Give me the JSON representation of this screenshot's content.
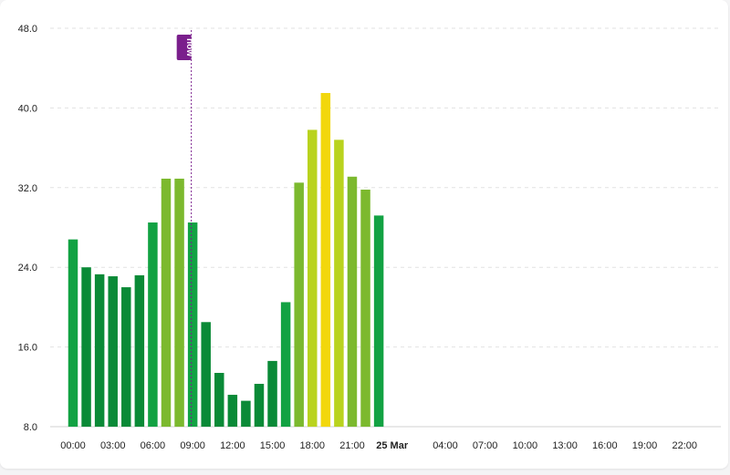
{
  "chart_data": {
    "type": "bar",
    "y_axis": {
      "ticks": [
        "8.0",
        "16.0",
        "24.0",
        "32.0",
        "40.0",
        "48.0"
      ],
      "ylim": [
        8,
        48
      ],
      "grid": true
    },
    "x_axis": {
      "tick_labels": [
        {
          "slot": 0,
          "text": "00:00"
        },
        {
          "slot": 3,
          "text": "03:00"
        },
        {
          "slot": 6,
          "text": "06:00"
        },
        {
          "slot": 9,
          "text": "09:00"
        },
        {
          "slot": 12,
          "text": "12:00"
        },
        {
          "slot": 15,
          "text": "15:00"
        },
        {
          "slot": 18,
          "text": "18:00"
        },
        {
          "slot": 21,
          "text": "21:00"
        },
        {
          "slot": 24,
          "text": "25 Mar",
          "bold": true
        },
        {
          "slot": 28,
          "text": "04:00"
        },
        {
          "slot": 31,
          "text": "07:00"
        },
        {
          "slot": 34,
          "text": "10:00"
        },
        {
          "slot": 37,
          "text": "13:00"
        },
        {
          "slot": 40,
          "text": "16:00"
        },
        {
          "slot": 43,
          "text": "19:00"
        },
        {
          "slot": 46,
          "text": "22:00"
        }
      ]
    },
    "bars": [
      {
        "hour": 0,
        "value": 26.8,
        "color": "#12a243"
      },
      {
        "hour": 1,
        "value": 24.0,
        "color": "#0a8a37"
      },
      {
        "hour": 2,
        "value": 23.3,
        "color": "#0a8a37"
      },
      {
        "hour": 3,
        "value": 23.1,
        "color": "#0a8a37"
      },
      {
        "hour": 4,
        "value": 22.0,
        "color": "#0a8a37"
      },
      {
        "hour": 5,
        "value": 23.2,
        "color": "#0a8a37"
      },
      {
        "hour": 6,
        "value": 28.5,
        "color": "#12a243"
      },
      {
        "hour": 7,
        "value": 32.9,
        "color": "#7cb92e"
      },
      {
        "hour": 8,
        "value": 32.9,
        "color": "#7cb92e"
      },
      {
        "hour": 9,
        "value": 28.5,
        "color": "#12a243"
      },
      {
        "hour": 10,
        "value": 18.5,
        "color": "#0a8a37"
      },
      {
        "hour": 11,
        "value": 13.4,
        "color": "#0a8a37"
      },
      {
        "hour": 12,
        "value": 11.2,
        "color": "#0a8a37"
      },
      {
        "hour": 13,
        "value": 10.6,
        "color": "#0a8a37"
      },
      {
        "hour": 14,
        "value": 12.3,
        "color": "#0a8a37"
      },
      {
        "hour": 15,
        "value": 14.6,
        "color": "#0a8a37"
      },
      {
        "hour": 16,
        "value": 20.5,
        "color": "#12a243"
      },
      {
        "hour": 17,
        "value": 32.5,
        "color": "#7cb92e"
      },
      {
        "hour": 18,
        "value": 37.8,
        "color": "#b9d31e"
      },
      {
        "hour": 19,
        "value": 41.5,
        "color": "#f2d70c"
      },
      {
        "hour": 20,
        "value": 36.8,
        "color": "#b9d31e"
      },
      {
        "hour": 21,
        "value": 33.1,
        "color": "#7cb92e"
      },
      {
        "hour": 22,
        "value": 31.8,
        "color": "#7cb92e"
      },
      {
        "hour": 23,
        "value": 29.2,
        "color": "#12a243"
      }
    ],
    "now_marker": {
      "label": "now",
      "hour": 8.9,
      "color": "#7a1f8c"
    },
    "colors": {
      "grid": "#e2e2e2",
      "axis": "#d0d0d0"
    }
  }
}
